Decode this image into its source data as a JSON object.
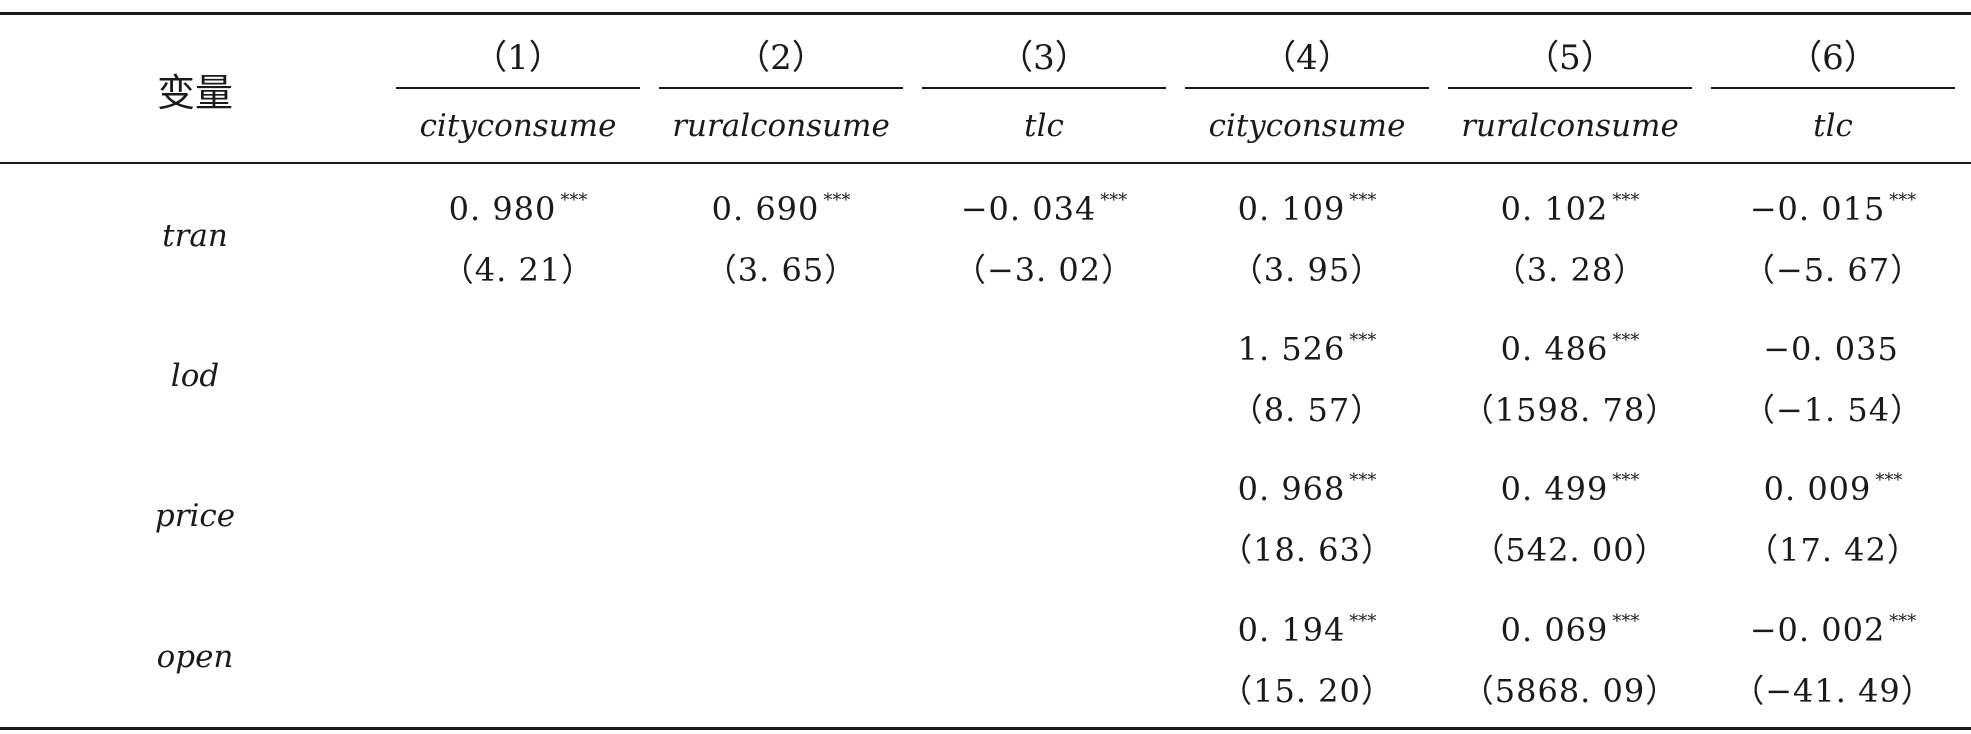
{
  "table": {
    "var_header": "变量",
    "columns": [
      {
        "num": "（1）",
        "name": "cityconsume"
      },
      {
        "num": "（2）",
        "name": "ruralconsume"
      },
      {
        "num": "（3）",
        "name": "tlc"
      },
      {
        "num": "（4）",
        "name": "cityconsume"
      },
      {
        "num": "（5）",
        "name": "ruralconsume"
      },
      {
        "num": "（6）",
        "name": "tlc"
      }
    ],
    "rows": [
      {
        "label": "tran",
        "cells": [
          {
            "coef": "0. 980",
            "stars": "***",
            "t": "（4. 21）"
          },
          {
            "coef": "0. 690",
            "stars": "***",
            "t": "（3. 65）"
          },
          {
            "coef": "−0. 034",
            "stars": "***",
            "t": "（−3. 02）"
          },
          {
            "coef": "0. 109",
            "stars": "***",
            "t": "（3. 95）"
          },
          {
            "coef": "0. 102",
            "stars": "***",
            "t": "（3. 28）"
          },
          {
            "coef": "−0. 015",
            "stars": "***",
            "t": "（−5. 67）"
          }
        ]
      },
      {
        "label": "lod",
        "cells": [
          null,
          null,
          null,
          {
            "coef": "1. 526",
            "stars": "***",
            "t": "（8. 57）"
          },
          {
            "coef": "0. 486",
            "stars": "***",
            "t": "（1598. 78）"
          },
          {
            "coef": "−0. 035",
            "stars": "",
            "t": "（−1. 54）"
          }
        ]
      },
      {
        "label": "price",
        "cells": [
          null,
          null,
          null,
          {
            "coef": "0. 968",
            "stars": "***",
            "t": "（18. 63）"
          },
          {
            "coef": "0. 499",
            "stars": "***",
            "t": "（542. 00）"
          },
          {
            "coef": "0. 009",
            "stars": "***",
            "t": "（17. 42）"
          }
        ]
      },
      {
        "label": "open",
        "cells": [
          null,
          null,
          null,
          {
            "coef": "0. 194",
            "stars": "***",
            "t": "（15. 20）"
          },
          {
            "coef": "0. 069",
            "stars": "***",
            "t": "（5868. 09）"
          },
          {
            "coef": "−0. 002",
            "stars": "***",
            "t": "（−41. 49）"
          }
        ]
      }
    ]
  }
}
